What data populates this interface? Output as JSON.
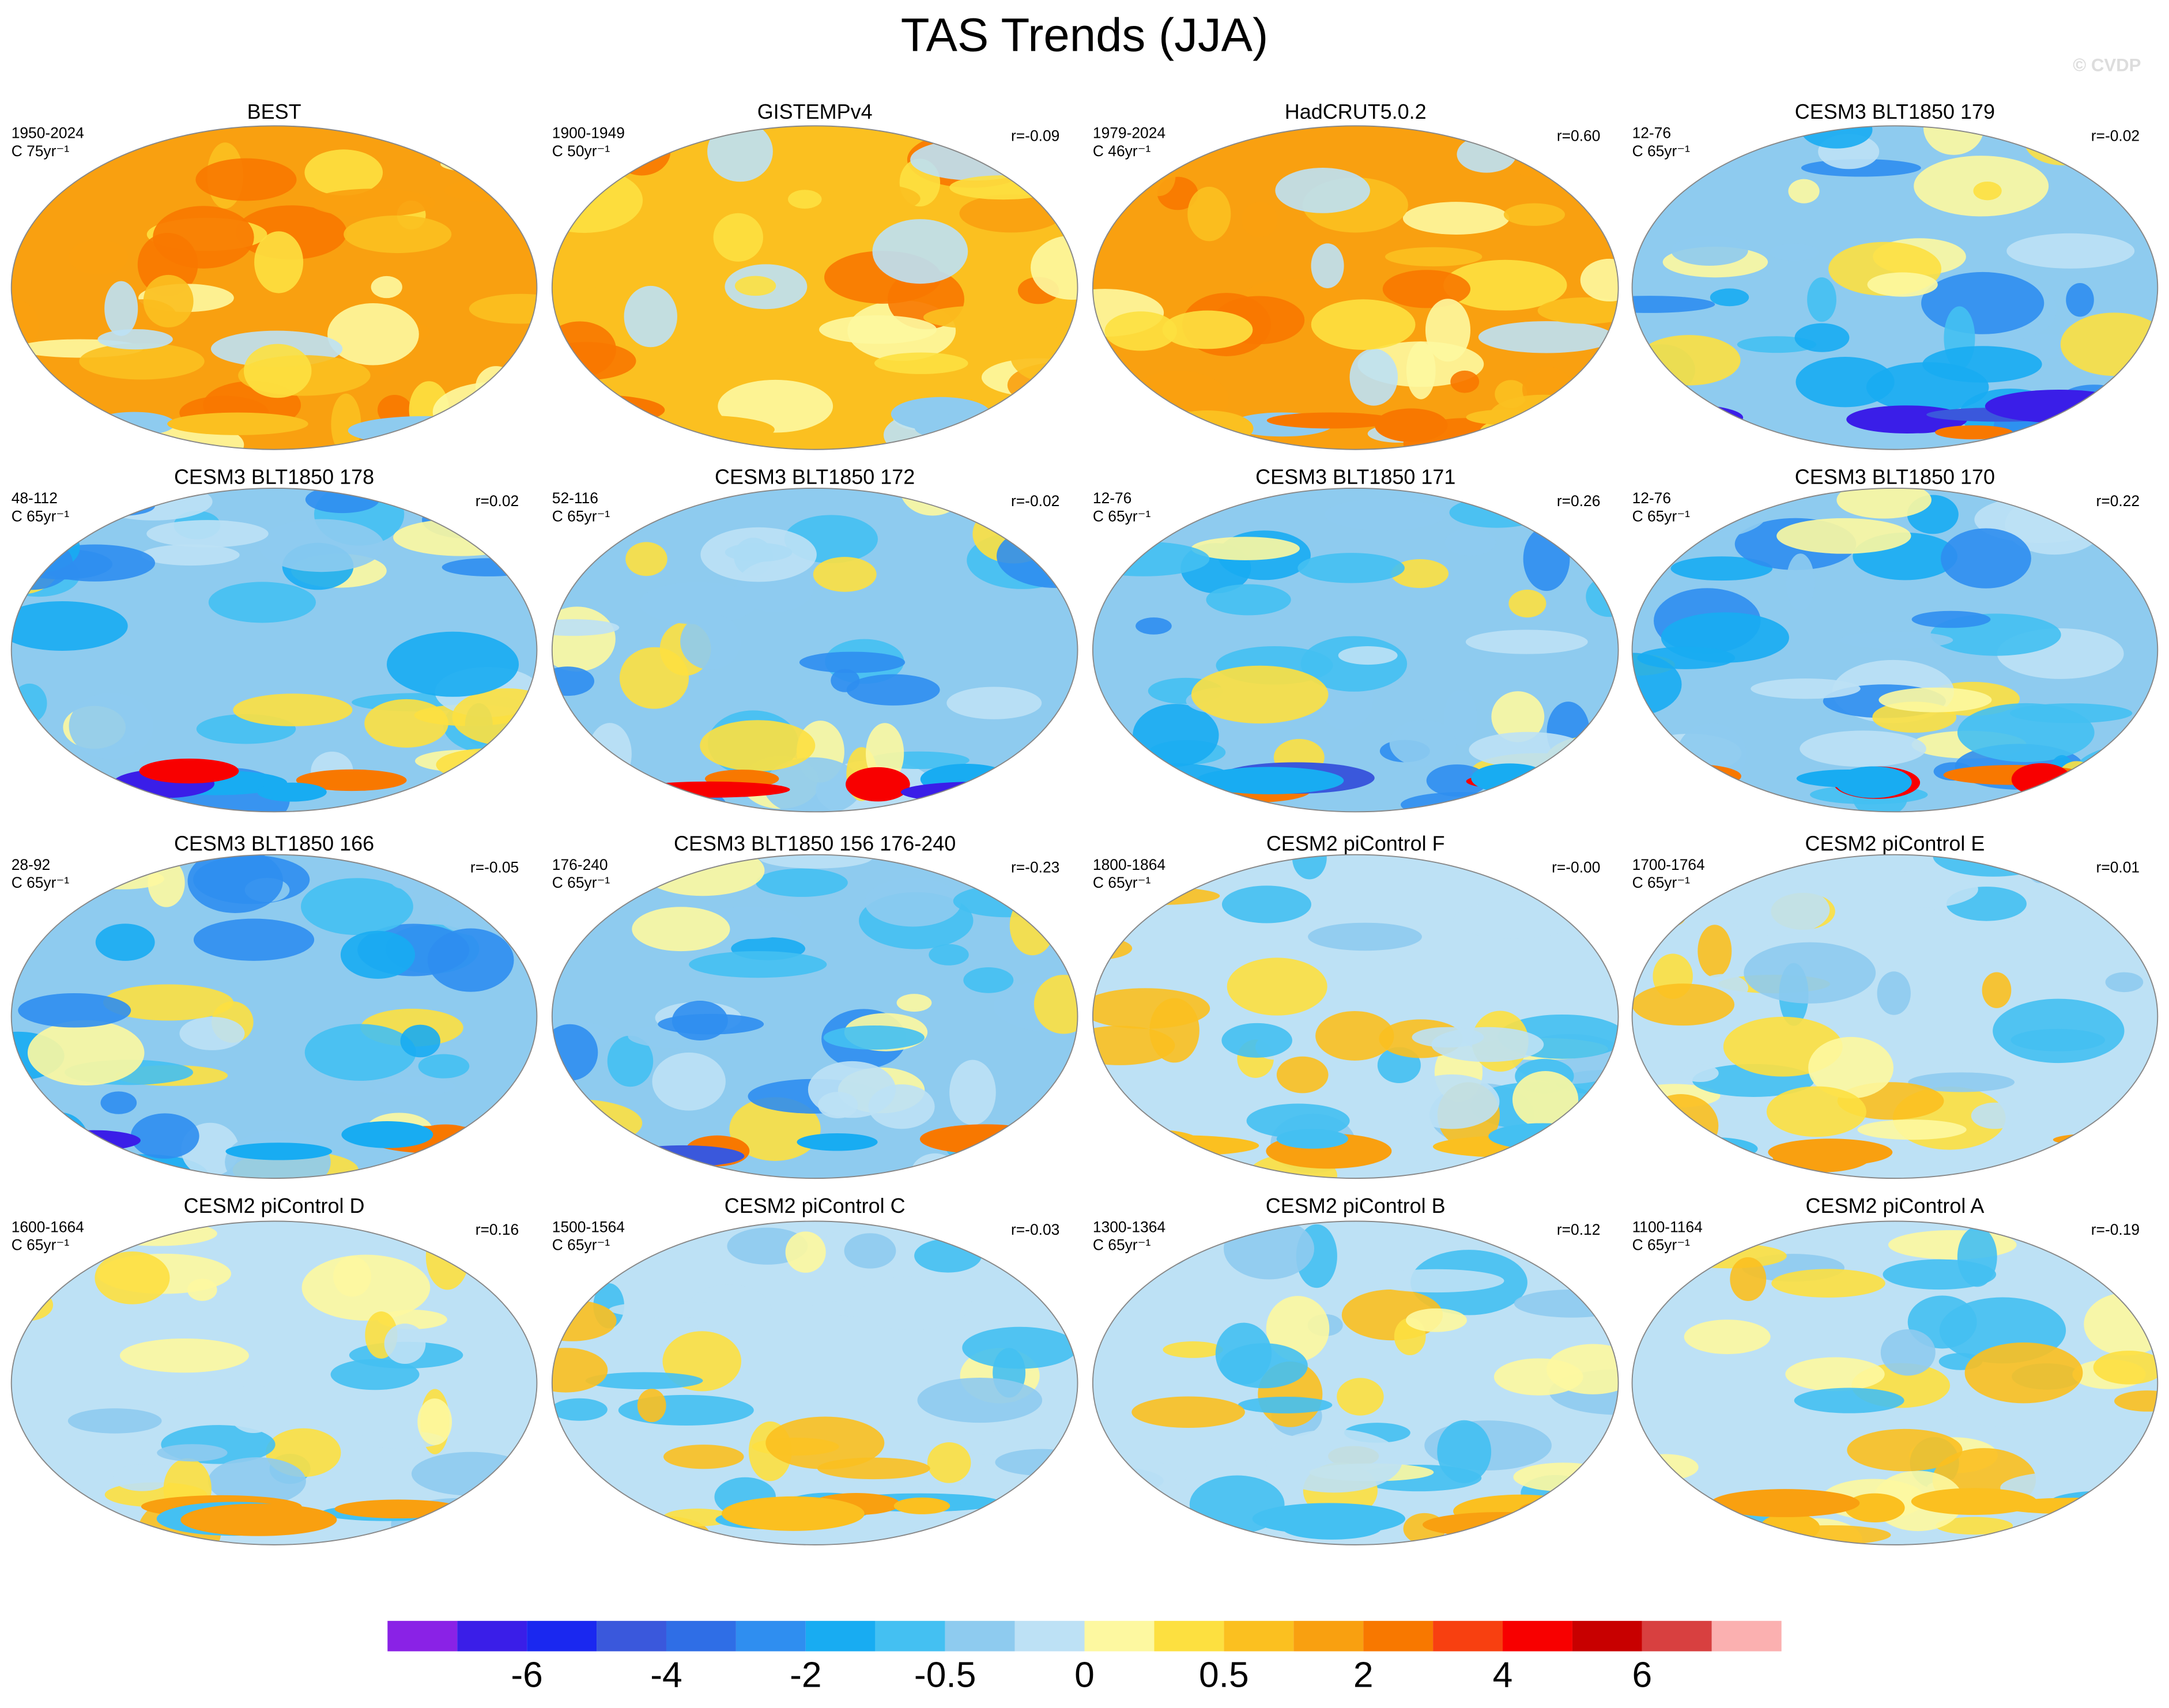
{
  "title": "TAS Trends (JJA)",
  "watermark": "© CVDP",
  "panels": [
    {
      "title": "BEST",
      "period": "1950-2024",
      "units": "C 75yr⁻¹"
    },
    {
      "title": "GISTEMPv4",
      "period": "1900-1949",
      "units": "C 50yr⁻¹",
      "r": "r=-0.09"
    },
    {
      "title": "HadCRUT5.0.2",
      "period": "1979-2024",
      "units": "C 46yr⁻¹",
      "r": "r=0.60"
    },
    {
      "title": "CESM3 BLT1850 179",
      "period": "12-76",
      "units": "C 65yr⁻¹",
      "r": "r=-0.02"
    },
    {
      "title": "CESM3 BLT1850 178",
      "period": "48-112",
      "units": "C 65yr⁻¹",
      "r": "r=0.02"
    },
    {
      "title": "CESM3 BLT1850 172",
      "period": "52-116",
      "units": "C 65yr⁻¹",
      "r": "r=-0.02"
    },
    {
      "title": "CESM3 BLT1850 171",
      "period": "12-76",
      "units": "C 65yr⁻¹",
      "r": "r=0.26"
    },
    {
      "title": "CESM3 BLT1850 170",
      "period": "12-76",
      "units": "C 65yr⁻¹",
      "r": "r=0.22"
    },
    {
      "title": "CESM3 BLT1850 166",
      "period": "28-92",
      "units": "C 65yr⁻¹",
      "r": "r=-0.05"
    },
    {
      "title": "CESM3 BLT1850 156 176-240",
      "period": "176-240",
      "units": "C 65yr⁻¹",
      "r": "r=-0.23"
    },
    {
      "title": "CESM2 piControl F",
      "period": "1800-1864",
      "units": "C 65yr⁻¹",
      "r": "r=-0.00"
    },
    {
      "title": "CESM2 piControl E",
      "period": "1700-1764",
      "units": "C 65yr⁻¹",
      "r": "r=0.01"
    },
    {
      "title": "CESM2 piControl D",
      "period": "1600-1664",
      "units": "C 65yr⁻¹",
      "r": "r=0.16"
    },
    {
      "title": "CESM2 piControl C",
      "period": "1500-1564",
      "units": "C 65yr⁻¹",
      "r": "r=-0.03"
    },
    {
      "title": "CESM2 piControl B",
      "period": "1300-1364",
      "units": "C 65yr⁻¹",
      "r": "r=0.12"
    },
    {
      "title": "CESM2 piControl A",
      "period": "1100-1164",
      "units": "C 65yr⁻¹",
      "r": "r=-0.19"
    }
  ],
  "colorbar": {
    "colors": [
      "#8a22e6",
      "#3a1ee8",
      "#1a28f0",
      "#3a58dc",
      "#2f6ee6",
      "#2f8ef0",
      "#18acf2",
      "#44c0f2",
      "#8ecbef",
      "#bde1f5",
      "#fdf8a0",
      "#fde040",
      "#fbc020",
      "#f9a010",
      "#f87800",
      "#f84010",
      "#f80000",
      "#c80000",
      "#d84040",
      "#fbb0b0"
    ],
    "labels": [
      "-6",
      "-4",
      "-2",
      "-0.5",
      "0",
      "0.5",
      "2",
      "4",
      "6"
    ]
  }
}
